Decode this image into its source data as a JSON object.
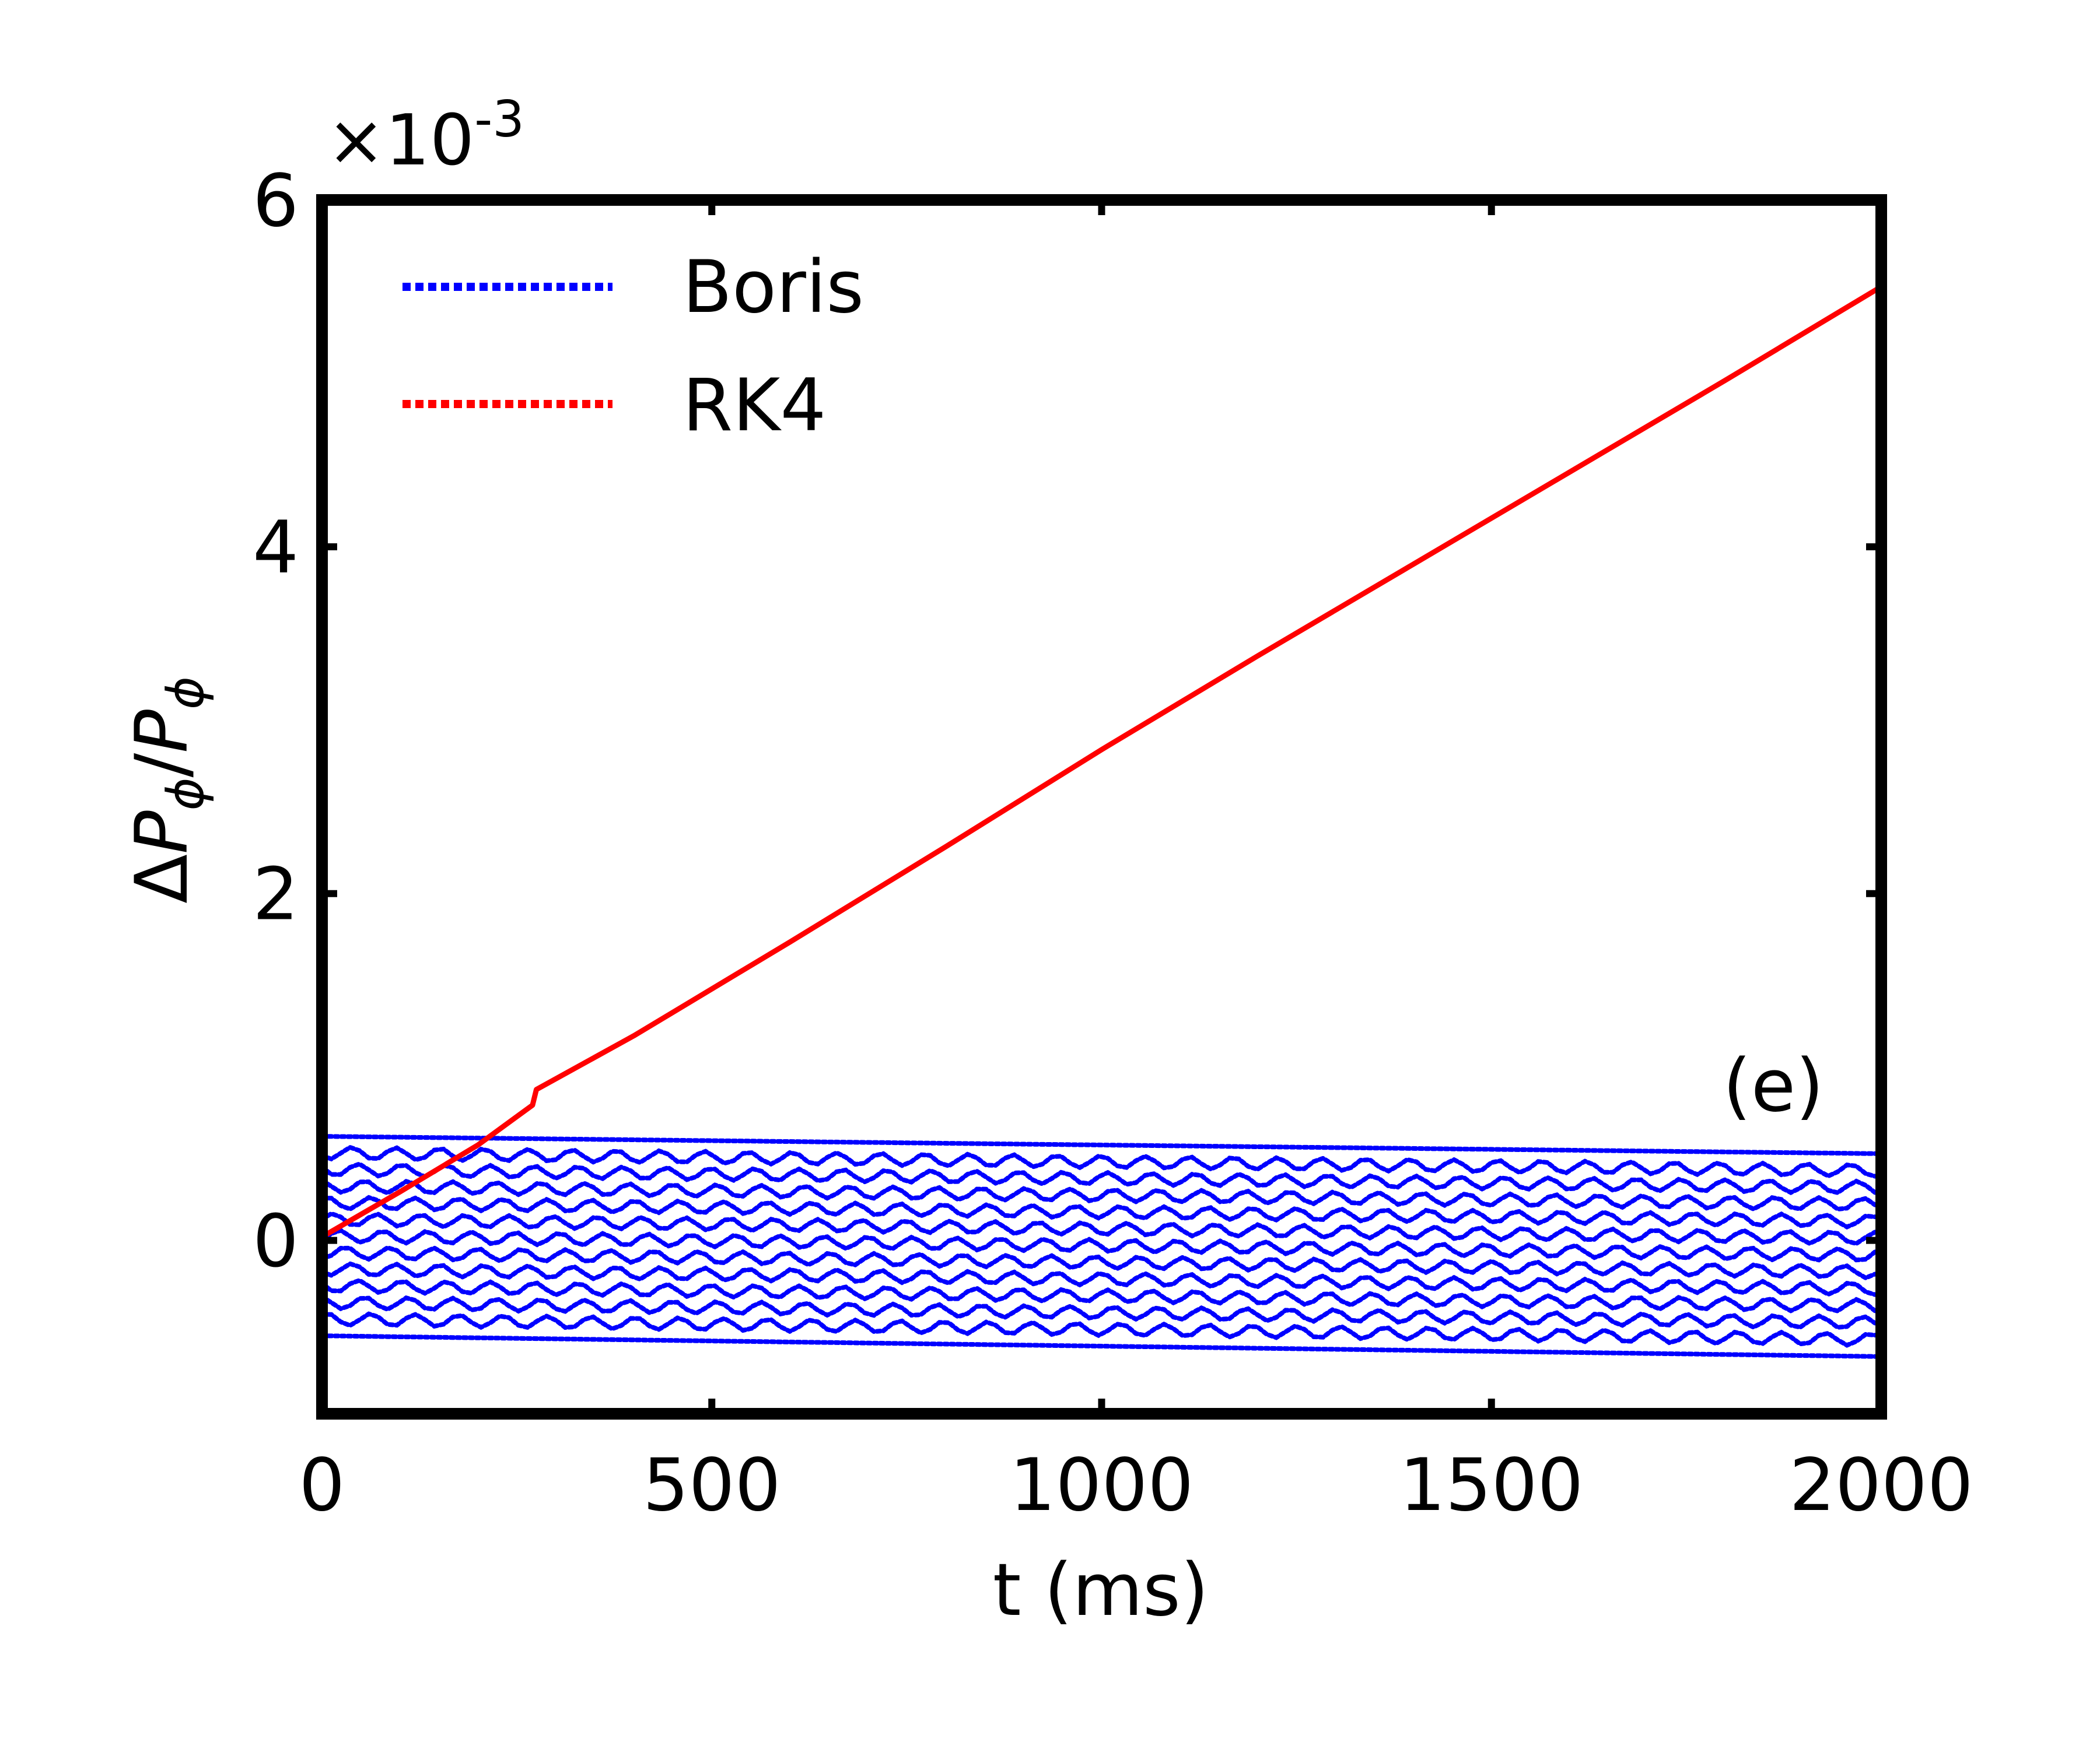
{
  "chart_data": {
    "type": "scatter",
    "title": "",
    "xlabel": "t (ms)",
    "ylabel": "ΔPϕ/Pϕ",
    "ylabel_parts": {
      "delta": "Δ",
      "base": "P",
      "sub": "ϕ",
      "slash": "/"
    },
    "y_multiplier": {
      "base": "×10",
      "exponent": "-3"
    },
    "xlim": [
      0,
      2000
    ],
    "ylim": [
      -1,
      6
    ],
    "x_ticks": [
      0,
      500,
      1000,
      1500,
      2000
    ],
    "x_tick_labels": [
      "0",
      "500",
      "1000",
      "1500",
      "2000"
    ],
    "y_ticks": [
      0,
      2,
      4,
      6
    ],
    "y_tick_labels": [
      "0",
      "2",
      "4",
      "6"
    ],
    "grid": false,
    "legend_position": "top-left",
    "panel_label": "(e)",
    "series": [
      {
        "name": "Boris",
        "color": "#0000ff",
        "style": "dotted",
        "band": {
          "upper_start": 0.6,
          "upper_end": 0.5,
          "lower_start": -0.55,
          "lower_end": -0.67,
          "x_start": 0,
          "x_end": 2000
        }
      },
      {
        "name": "RK4",
        "color": "#ff0000",
        "style": "dotted",
        "x": [
          0,
          100,
          200,
          270,
          275,
          400,
          600,
          800,
          1000,
          1200,
          1400,
          1600,
          1800,
          2000
        ],
        "y": [
          0.02,
          0.28,
          0.55,
          0.78,
          0.87,
          1.18,
          1.72,
          2.27,
          2.83,
          3.37,
          3.9,
          4.43,
          4.96,
          5.5
        ]
      }
    ]
  }
}
